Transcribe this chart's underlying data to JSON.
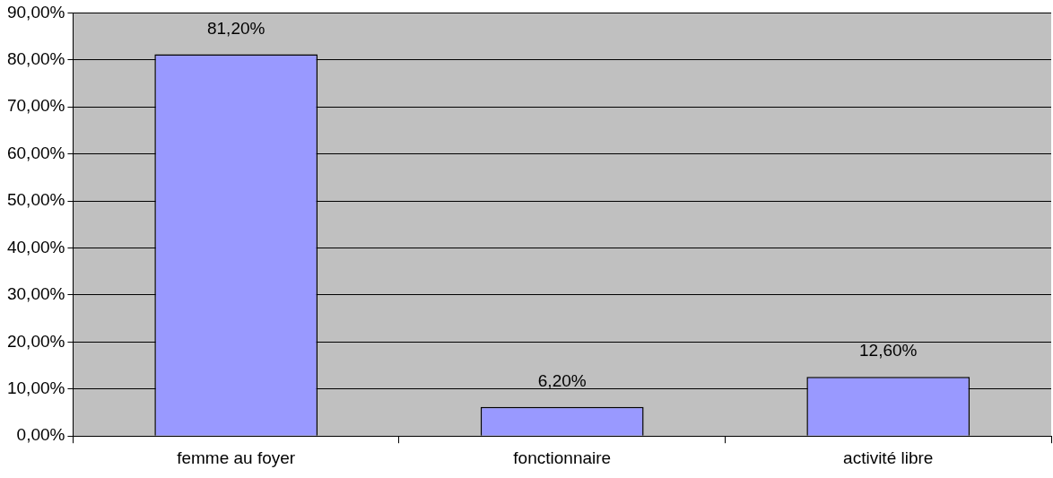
{
  "chart_data": {
    "type": "bar",
    "categories": [
      "femme au foyer",
      "fonctionnaire",
      "activité libre"
    ],
    "values": [
      81.2,
      6.2,
      12.6
    ],
    "color": "#9999ff",
    "value_labels": [
      "81,20%",
      "6,20%",
      "12,60%"
    ],
    "ylim": [
      0,
      90
    ],
    "yticks": [
      {
        "value": 0,
        "label": "0,00%"
      },
      {
        "value": 10,
        "label": "10,00%"
      },
      {
        "value": 20,
        "label": "20,00%"
      },
      {
        "value": 30,
        "label": "30,00%"
      },
      {
        "value": 40,
        "label": "40,00%"
      },
      {
        "value": 50,
        "label": "50,00%"
      },
      {
        "value": 60,
        "label": "60,00%"
      },
      {
        "value": 70,
        "label": "70,00%"
      },
      {
        "value": 80,
        "label": "80,00%"
      },
      {
        "value": 90,
        "label": "90,00%"
      }
    ],
    "grid": "y",
    "legend": false
  }
}
